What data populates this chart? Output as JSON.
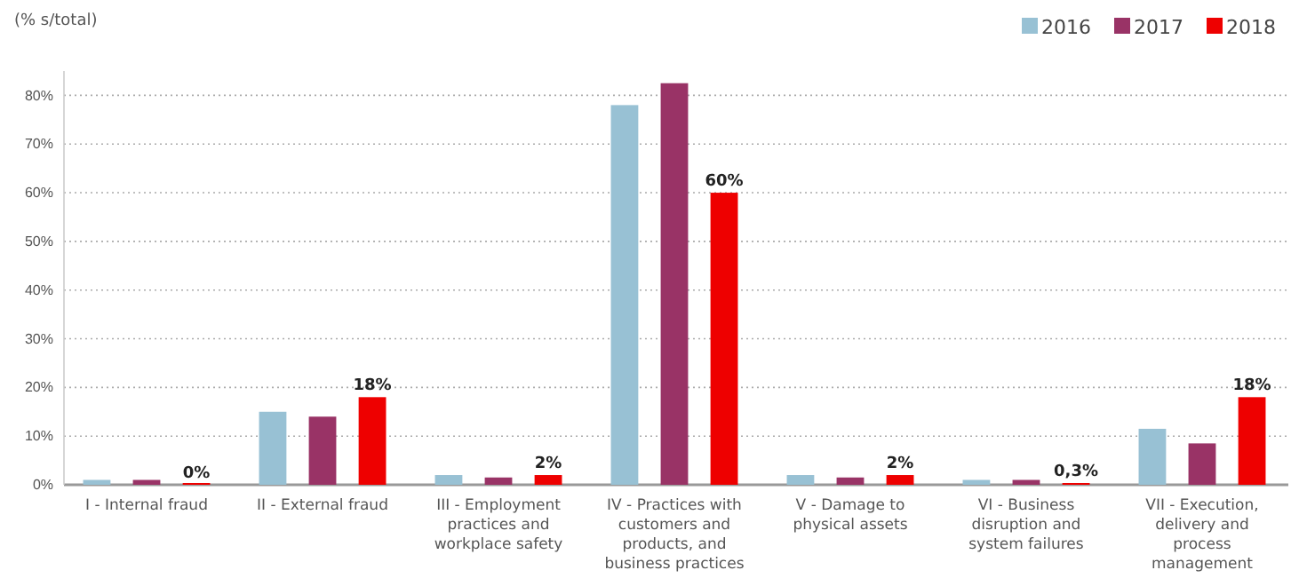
{
  "chart_data": {
    "type": "bar",
    "ylabel": "(% s/total)",
    "categories": [
      "I - Internal fraud",
      "II - External fraud",
      "III - Employment practices and workplace safety",
      "IV - Practices with customers and products, and business practices",
      "V - Damage to physical assets",
      "VI - Business disruption and system failures",
      "VII - Execution, delivery and process management"
    ],
    "series": [
      {
        "name": "2016",
        "color": "#98c1d4",
        "values": [
          1,
          15,
          2,
          78,
          2,
          1,
          11.5
        ]
      },
      {
        "name": "2017",
        "color": "#993366",
        "values": [
          1,
          14,
          1.5,
          82.5,
          1.5,
          1,
          8.5
        ]
      },
      {
        "name": "2018",
        "color": "#ee0000",
        "values": [
          0,
          18,
          2,
          60,
          2,
          0.3,
          18
        ],
        "value_labels": [
          "0%",
          "18%",
          "2%",
          "60%",
          "2%",
          "0,3%",
          "18%"
        ]
      }
    ],
    "ylim": [
      0,
      85
    ],
    "yticks": [
      {
        "value": 0,
        "label": "0%"
      },
      {
        "value": 10,
        "label": "10%"
      },
      {
        "value": 20,
        "label": "20%"
      },
      {
        "value": 30,
        "label": "30%"
      },
      {
        "value": 40,
        "label": "40%"
      },
      {
        "value": 50,
        "label": "50%"
      },
      {
        "value": 60,
        "label": "60%"
      },
      {
        "value": 70,
        "label": "70%"
      },
      {
        "value": 80,
        "label": "80%"
      }
    ],
    "grid": "y",
    "legend": "top right"
  }
}
